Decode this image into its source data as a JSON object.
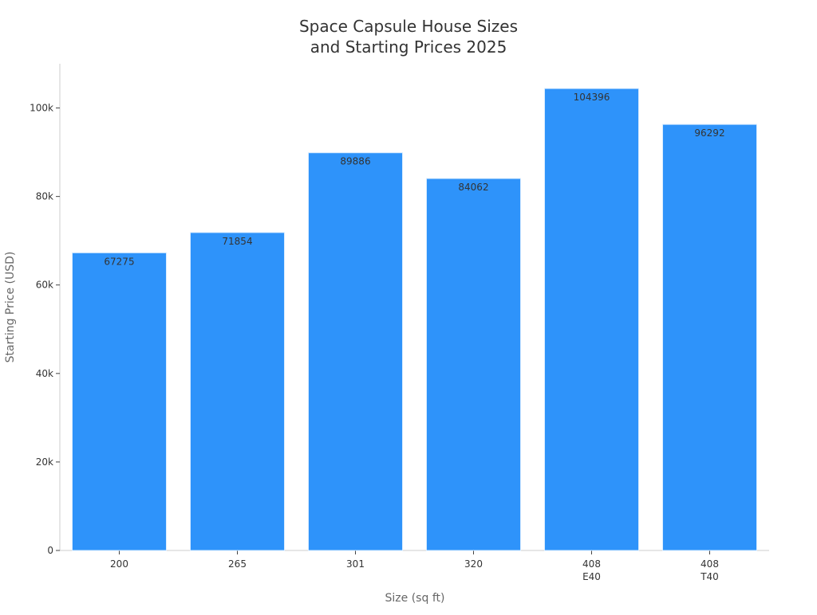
{
  "chart_data": {
    "type": "bar",
    "title": "Space Capsule House Sizes\nand Starting Prices 2025",
    "xlabel": "Size (sq ft)",
    "ylabel": "Starting Price (USD)",
    "categories": [
      [
        "200"
      ],
      [
        "265"
      ],
      [
        "301"
      ],
      [
        "320"
      ],
      [
        "408",
        "E40"
      ],
      [
        "408",
        "T40"
      ]
    ],
    "values": [
      67275,
      71854,
      89886,
      84062,
      104396,
      96292
    ],
    "ylim": [
      0,
      110000
    ],
    "yticks": [
      0,
      20000,
      40000,
      60000,
      80000,
      100000
    ],
    "ytick_labels": [
      "0",
      "20k",
      "40k",
      "60k",
      "80k",
      "100k"
    ],
    "grid": false,
    "legend": "none",
    "colors": {
      "bar": "#2e93fa",
      "bar_edge": "#d9ecff",
      "axis": "#cccccc",
      "text": "#333333",
      "label": "#666666"
    }
  }
}
